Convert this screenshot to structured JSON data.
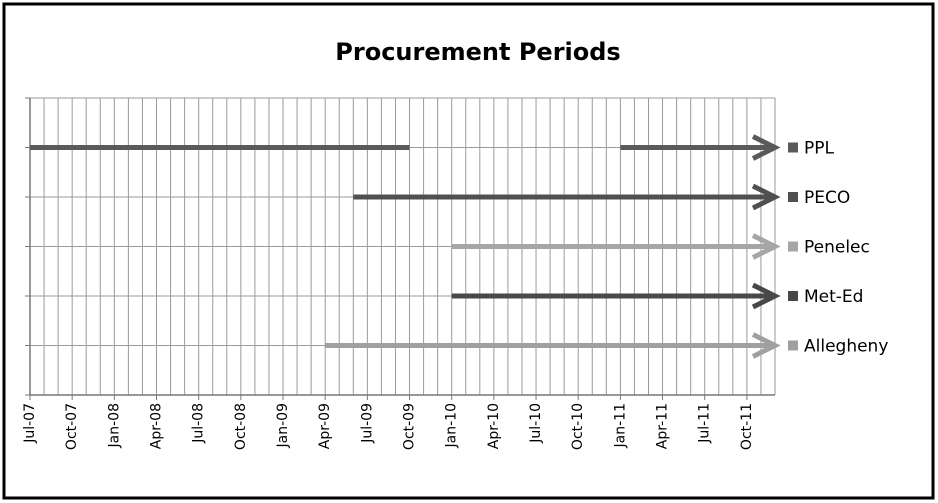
{
  "chart_data": {
    "type": "timeline",
    "title": "Procurement Periods",
    "xlim": [
      0,
      53
    ],
    "xticks": [
      {
        "value": 0,
        "label": "Jul-07"
      },
      {
        "value": 3,
        "label": "Oct-07"
      },
      {
        "value": 6,
        "label": "Jan-08"
      },
      {
        "value": 9,
        "label": "Apr-08"
      },
      {
        "value": 12,
        "label": "Jul-08"
      },
      {
        "value": 15,
        "label": "Oct-08"
      },
      {
        "value": 18,
        "label": "Jan-09"
      },
      {
        "value": 21,
        "label": "Apr-09"
      },
      {
        "value": 24,
        "label": "Jul-09"
      },
      {
        "value": 27,
        "label": "Oct-09"
      },
      {
        "value": 30,
        "label": "Jan-10"
      },
      {
        "value": 33,
        "label": "Apr-10"
      },
      {
        "value": 36,
        "label": "Jul-10"
      },
      {
        "value": 39,
        "label": "Oct-10"
      },
      {
        "value": 42,
        "label": "Jan-11"
      },
      {
        "value": 45,
        "label": "Apr-11"
      },
      {
        "value": 48,
        "label": "Jul-11"
      },
      {
        "value": 51,
        "label": "Oct-11"
      }
    ],
    "xminorticks": [
      0,
      1,
      2,
      3,
      4,
      5,
      6,
      7,
      8,
      9,
      10,
      11,
      12,
      13,
      14,
      15,
      16,
      17,
      18,
      19,
      20,
      21,
      22,
      23,
      24,
      25,
      26,
      27,
      28,
      29,
      30,
      31,
      32,
      33,
      34,
      35,
      36,
      37,
      38,
      39,
      40,
      41,
      42,
      43,
      44,
      45,
      46,
      47,
      48,
      49,
      50,
      51,
      52,
      53
    ],
    "grid": true,
    "series": [
      {
        "name": "PPL",
        "color": "#5a5a5a",
        "segments": [
          {
            "start": 0,
            "end": 27,
            "arrow": false
          },
          {
            "start": 42,
            "end": 53,
            "arrow": true
          }
        ]
      },
      {
        "name": "PECO",
        "color": "#505050",
        "segments": [
          {
            "start": 23,
            "end": 53,
            "arrow": true
          }
        ]
      },
      {
        "name": "Penelec",
        "color": "#a6a6a6",
        "segments": [
          {
            "start": 30,
            "end": 53,
            "arrow": true
          }
        ]
      },
      {
        "name": "Met-Ed",
        "color": "#484848",
        "segments": [
          {
            "start": 30,
            "end": 53,
            "arrow": true
          }
        ]
      },
      {
        "name": "Allegheny",
        "color": "#a0a0a0",
        "segments": [
          {
            "start": 21,
            "end": 53,
            "arrow": true
          }
        ]
      }
    ]
  }
}
